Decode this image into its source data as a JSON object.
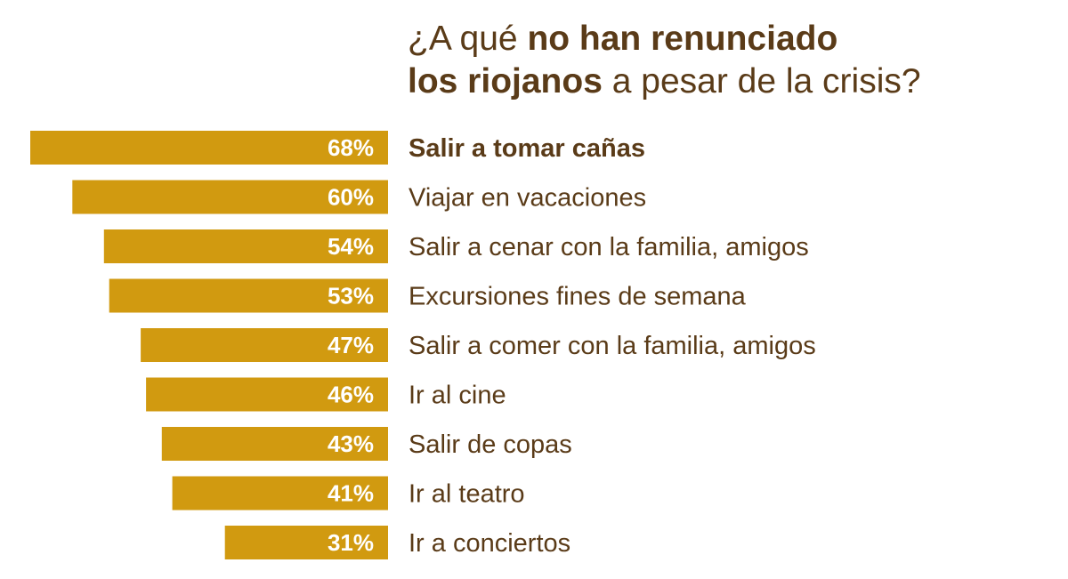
{
  "title": {
    "line1_regular": "¿A qué ",
    "line1_bold": "no han renunciado",
    "line2_bold": "los riojanos",
    "line2_regular": " a pesar de la crisis?"
  },
  "colors": {
    "bar": "#d19a10",
    "text": "#5a3b18",
    "value_label": "#ffffff"
  },
  "chart_data": {
    "type": "bar",
    "orientation": "horizontal",
    "title": "¿A qué no han renunciado los riojanos a pesar de la crisis?",
    "categories": [
      "Salir a tomar cañas",
      "Viajar en vacaciones",
      "Salir a cenar con la familia, amigos",
      "Excursiones fines de semana",
      "Salir a comer con la familia, amigos",
      "Ir al cine",
      "Salir de copas",
      "Ir al teatro",
      "Ir a conciertos"
    ],
    "values": [
      68,
      60,
      54,
      53,
      47,
      46,
      43,
      41,
      31
    ],
    "value_labels": [
      "68%",
      "60%",
      "54%",
      "53%",
      "47%",
      "46%",
      "43%",
      "41%",
      "31%"
    ],
    "unit": "%",
    "xlim": [
      0,
      68
    ],
    "highlighted_category": "Salir a tomar cañas",
    "grid": false,
    "legend": "none"
  }
}
